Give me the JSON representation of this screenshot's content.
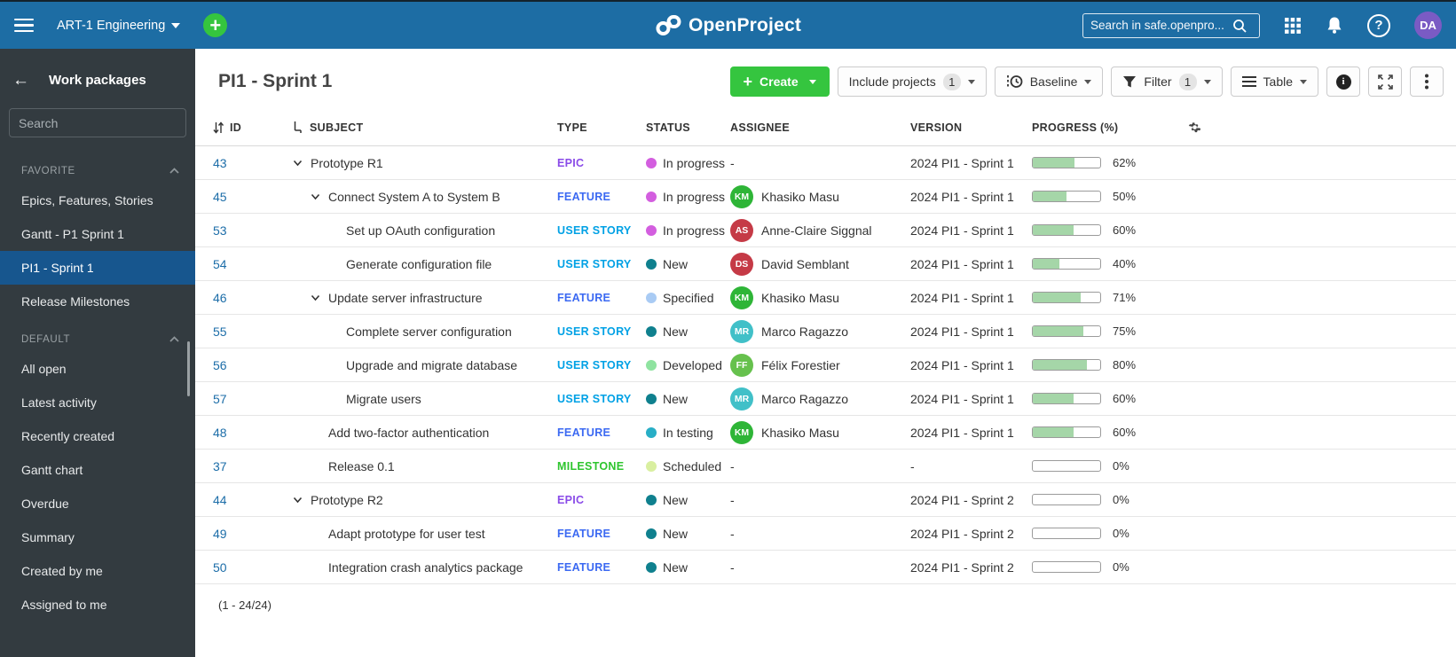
{
  "topbar": {
    "project_selector": "ART-1 Engineering",
    "logo_text": "OpenProject",
    "search_placeholder": "Search in safe.openpro...",
    "avatar_initials": "DA",
    "colors": {
      "bar": "#1d6da4",
      "plus": "#35c53f",
      "avatar": "#7a5bc4"
    }
  },
  "sidebar": {
    "title": "Work packages",
    "search_placeholder": "Search",
    "sections": [
      {
        "label": "FAVORITE",
        "items": [
          {
            "label": "Epics, Features, Stories",
            "selected": false
          },
          {
            "label": "Gantt - P1 Sprint 1",
            "selected": false
          },
          {
            "label": "PI1 - Sprint 1",
            "selected": true
          },
          {
            "label": "Release Milestones",
            "selected": false
          }
        ]
      },
      {
        "label": "DEFAULT",
        "items": [
          {
            "label": "All open",
            "selected": false
          },
          {
            "label": "Latest activity",
            "selected": false
          },
          {
            "label": "Recently created",
            "selected": false
          },
          {
            "label": "Gantt chart",
            "selected": false
          },
          {
            "label": "Overdue",
            "selected": false
          },
          {
            "label": "Summary",
            "selected": false
          },
          {
            "label": "Created by me",
            "selected": false
          },
          {
            "label": "Assigned to me",
            "selected": false
          }
        ]
      }
    ]
  },
  "main": {
    "title": "PI1 - Sprint 1",
    "toolbar": {
      "create_label": "Create",
      "include_projects_label": "Include projects",
      "include_projects_count": "1",
      "baseline_label": "Baseline",
      "filter_label": "Filter",
      "filter_count": "1",
      "table_label": "Table"
    },
    "table": {
      "columns": [
        "ID",
        "SUBJECT",
        "TYPE",
        "STATUS",
        "ASSIGNEE",
        "VERSION",
        "PROGRESS (%)"
      ],
      "type_colors": {
        "EPIC": "#8a4be8",
        "FEATURE": "#3b69f2",
        "USER STORY": "#00a1e5",
        "MILESTONE": "#2ec52e"
      },
      "status_colors": {
        "In progress": "#d35edf",
        "New": "#0f808e",
        "Specified": "#a9cbf4",
        "Developed": "#8fe3a0",
        "Scheduled": "#d9efa0",
        "In testing": "#28aec6"
      },
      "rows": [
        {
          "id": "43",
          "indent": 0,
          "arrow": true,
          "subject": "Prototype R1",
          "type": "EPIC",
          "status": "In progress",
          "assignee": "-",
          "initials": "",
          "avatar_color": "",
          "version": "2024 PI1 - Sprint 1",
          "progress": 62
        },
        {
          "id": "45",
          "indent": 1,
          "arrow": true,
          "subject": "Connect System A to System B",
          "type": "FEATURE",
          "status": "In progress",
          "assignee": "Khasiko Masu",
          "initials": "KM",
          "avatar_color": "#2eb537",
          "version": "2024 PI1 - Sprint 1",
          "progress": 50
        },
        {
          "id": "53",
          "indent": 2,
          "arrow": false,
          "subject": "Set up OAuth configuration",
          "type": "USER STORY",
          "status": "In progress",
          "assignee": "Anne-Claire Siggnal",
          "initials": "AS",
          "avatar_color": "#c53a46",
          "version": "2024 PI1 - Sprint 1",
          "progress": 60
        },
        {
          "id": "54",
          "indent": 2,
          "arrow": false,
          "subject": "Generate configuration file",
          "type": "USER STORY",
          "status": "New",
          "assignee": "David Semblant",
          "initials": "DS",
          "avatar_color": "#c53a46",
          "version": "2024 PI1 - Sprint 1",
          "progress": 40
        },
        {
          "id": "46",
          "indent": 1,
          "arrow": true,
          "subject": "Update server infrastructure",
          "type": "FEATURE",
          "status": "Specified",
          "assignee": "Khasiko Masu",
          "initials": "KM",
          "avatar_color": "#2eb537",
          "version": "2024 PI1 - Sprint 1",
          "progress": 71
        },
        {
          "id": "55",
          "indent": 2,
          "arrow": false,
          "subject": "Complete server configuration",
          "type": "USER STORY",
          "status": "New",
          "assignee": "Marco Ragazzo",
          "initials": "MR",
          "avatar_color": "#41c0c8",
          "version": "2024 PI1 - Sprint 1",
          "progress": 75
        },
        {
          "id": "56",
          "indent": 2,
          "arrow": false,
          "subject": "Upgrade and migrate database",
          "type": "USER STORY",
          "status": "Developed",
          "assignee": "Félix Forestier",
          "initials": "FF",
          "avatar_color": "#66c14d",
          "version": "2024 PI1 - Sprint 1",
          "progress": 80
        },
        {
          "id": "57",
          "indent": 2,
          "arrow": false,
          "subject": "Migrate users",
          "type": "USER STORY",
          "status": "New",
          "assignee": "Marco Ragazzo",
          "initials": "MR",
          "avatar_color": "#41c0c8",
          "version": "2024 PI1 - Sprint 1",
          "progress": 60
        },
        {
          "id": "48",
          "indent": 1,
          "arrow": false,
          "subject": "Add two-factor authentication",
          "type": "FEATURE",
          "status": "In testing",
          "assignee": "Khasiko Masu",
          "initials": "KM",
          "avatar_color": "#2eb537",
          "version": "2024 PI1 - Sprint 1",
          "progress": 60
        },
        {
          "id": "37",
          "indent": 1,
          "arrow": false,
          "subject": "Release 0.1",
          "type": "MILESTONE",
          "status": "Scheduled",
          "assignee": "-",
          "initials": "",
          "avatar_color": "",
          "version": "-",
          "progress": 0
        },
        {
          "id": "44",
          "indent": 0,
          "arrow": true,
          "subject": "Prototype R2",
          "type": "EPIC",
          "status": "New",
          "assignee": "-",
          "initials": "",
          "avatar_color": "",
          "version": "2024 PI1 - Sprint 2",
          "progress": 0
        },
        {
          "id": "49",
          "indent": 1,
          "arrow": false,
          "subject": "Adapt prototype for user test",
          "type": "FEATURE",
          "status": "New",
          "assignee": "-",
          "initials": "",
          "avatar_color": "",
          "version": "2024 PI1 - Sprint 2",
          "progress": 0
        },
        {
          "id": "50",
          "indent": 1,
          "arrow": false,
          "subject": "Integration crash analytics package",
          "type": "FEATURE",
          "status": "New",
          "assignee": "-",
          "initials": "",
          "avatar_color": "",
          "version": "2024 PI1 - Sprint 2",
          "progress": 0
        }
      ],
      "footer": "(1 - 24/24)"
    }
  }
}
